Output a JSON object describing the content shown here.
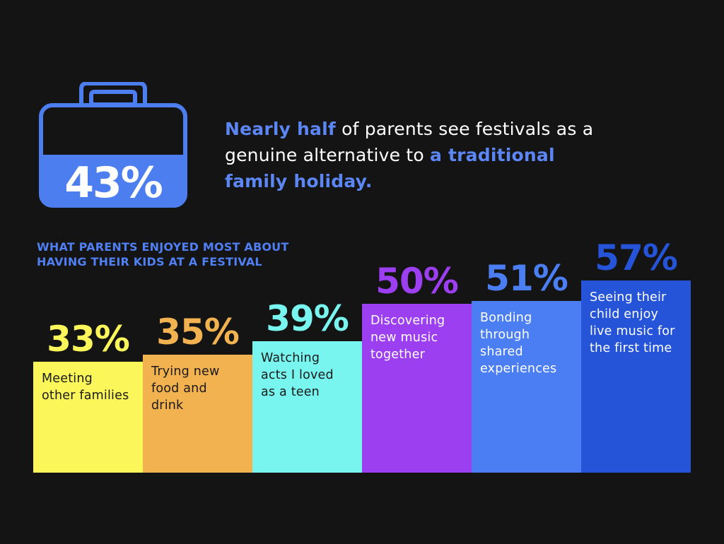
{
  "headline": {
    "part1": "Nearly half",
    "part2": " of parents see festivals as a genuine alternative to ",
    "part3": "a traditional family holiday."
  },
  "case_stat": "43%",
  "subtitle": "WHAT PARENTS ENJOYED MOST ABOUT HAVING THEIR KIDS AT A FESTIVAL",
  "colors": {
    "background": "#141414",
    "accent": "#4f7ff2",
    "case_fill": "#4d7ef0"
  },
  "chart_data": {
    "type": "bar",
    "categories": [
      "Meeting other families",
      "Trying new food and drink",
      "Watching acts I loved as a teen",
      "Discovering new music together",
      "Bonding through shared experiences",
      "Seeing their child enjoy live music for the first time"
    ],
    "values": [
      33,
      35,
      39,
      50,
      51,
      57
    ],
    "value_labels": [
      "33%",
      "35%",
      "39%",
      "50%",
      "51%",
      "57%"
    ],
    "label_lines": [
      [
        "Meeting",
        "other families"
      ],
      [
        "Trying new",
        "food and",
        "drink"
      ],
      [
        "Watching",
        "acts I loved",
        "as a teen"
      ],
      [
        "Discovering",
        "new music",
        "together"
      ],
      [
        "Bonding",
        "through",
        "shared",
        "experiences"
      ],
      [
        "Seeing their",
        "child enjoy",
        "live music for",
        "the first time"
      ]
    ],
    "bar_colors": [
      "#fbf65a",
      "#f2b24f",
      "#79f5ef",
      "#9b3ff0",
      "#4a7ef2",
      "#2554d8"
    ],
    "value_colors": [
      "#fbf65a",
      "#f2b24f",
      "#79f5ef",
      "#9b3ff0",
      "#4a7ef2",
      "#2554d8"
    ],
    "label_colors": [
      "#1a1a1a",
      "#1a1a1a",
      "#1a1a1a",
      "#ffffff",
      "#ffffff",
      "#ffffff"
    ],
    "ylim": [
      0,
      57
    ]
  }
}
